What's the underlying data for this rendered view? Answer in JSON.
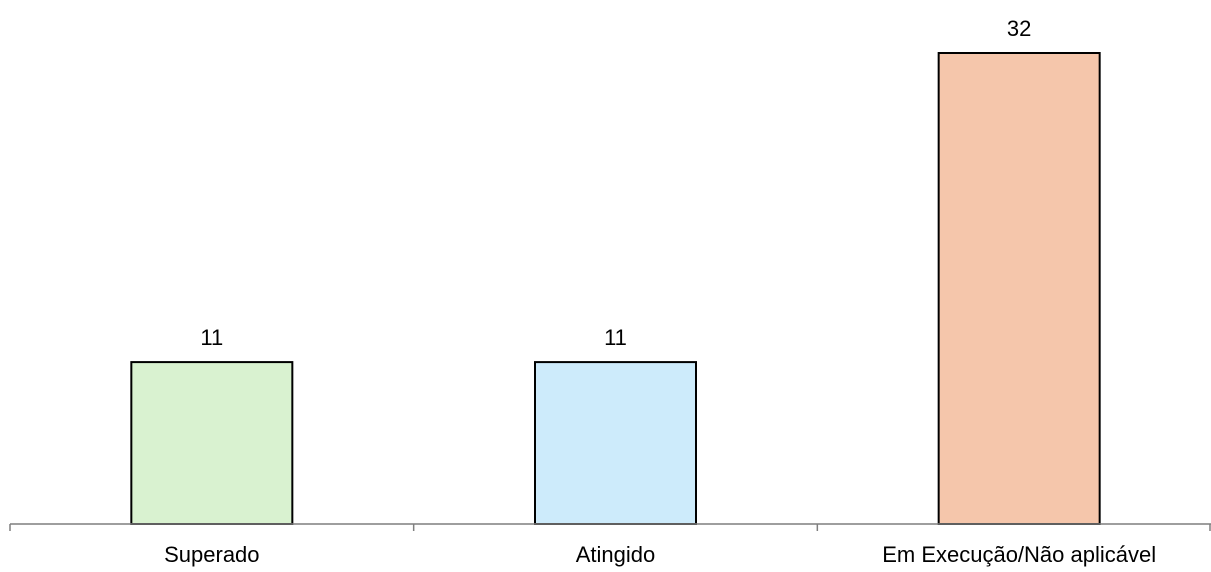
{
  "chart_data": {
    "type": "bar",
    "categories": [
      "Superado",
      "Atingido",
      "Em Execução/Não aplicável"
    ],
    "values": [
      11,
      11,
      32
    ],
    "colors": [
      "#d9f2d0",
      "#cdebfb",
      "#f5c6ab"
    ],
    "data_labels": [
      "11",
      "11",
      "32"
    ],
    "title": "",
    "xlabel": "",
    "ylabel": "",
    "ylim": [
      0,
      32
    ],
    "grid": false,
    "legend": "none"
  }
}
